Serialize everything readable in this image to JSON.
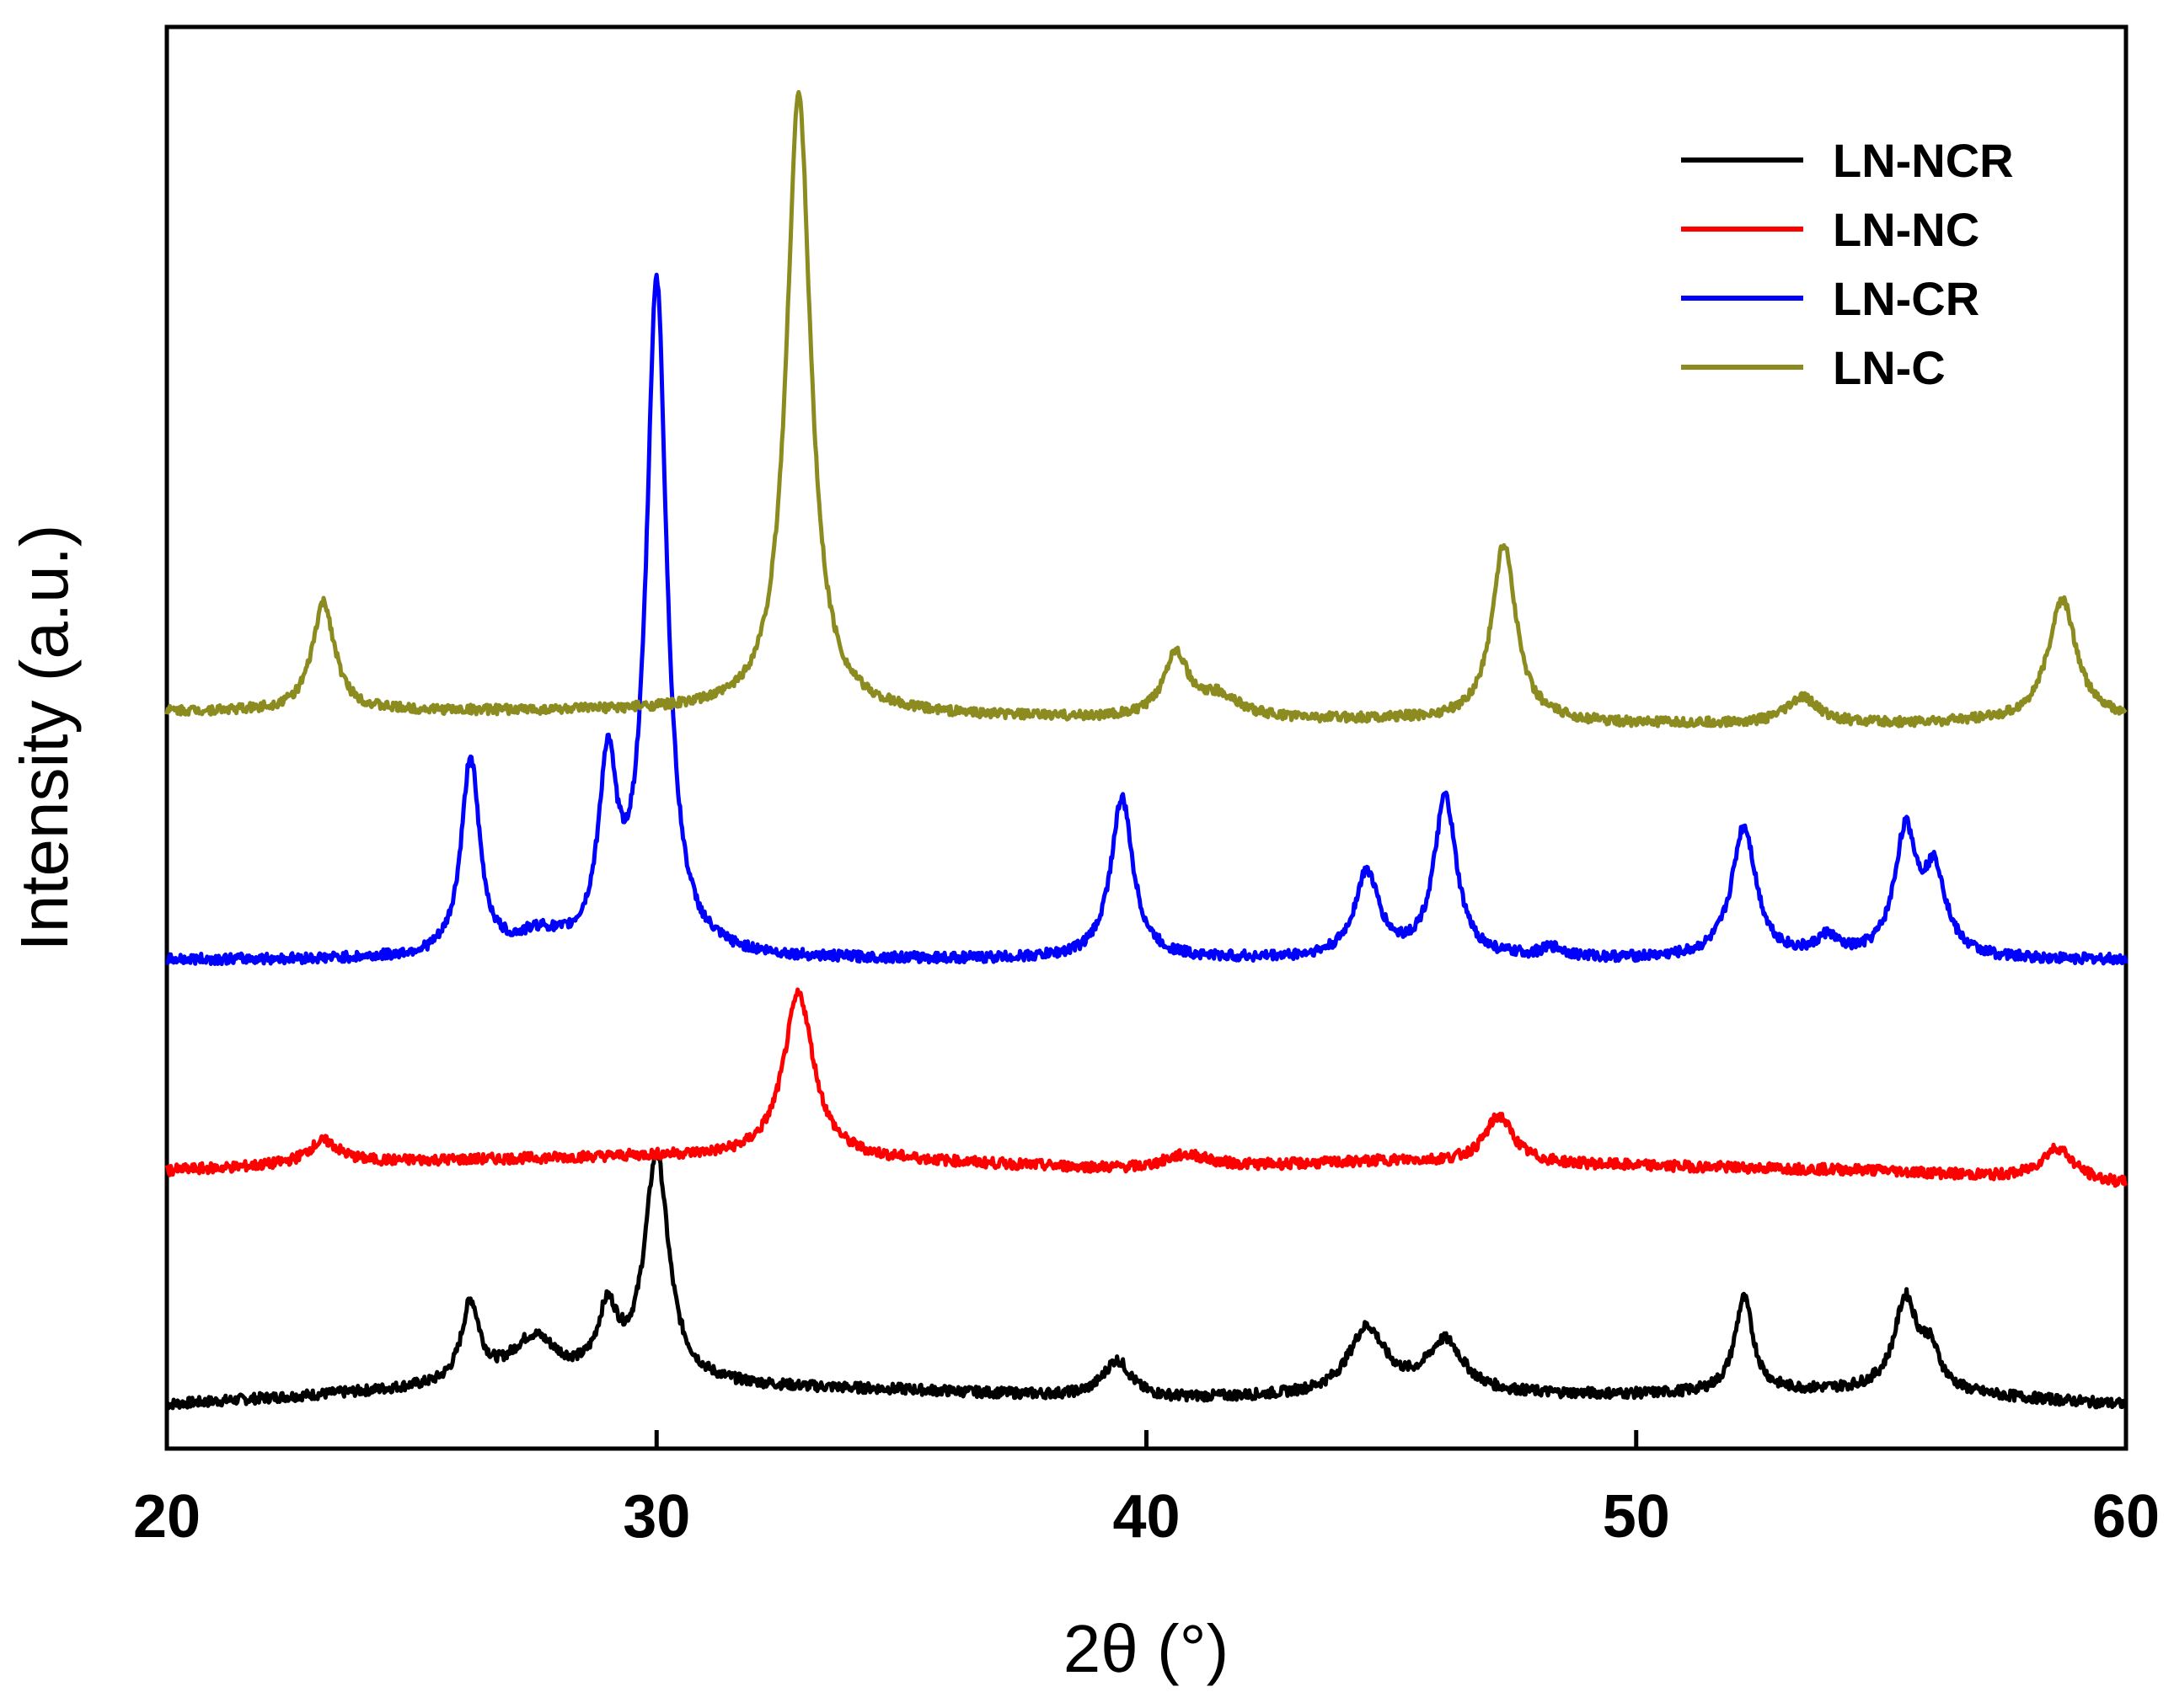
{
  "chart_data": {
    "type": "line",
    "title": "",
    "xlabel": "2θ (°)",
    "ylabel": "Intensity (a.u.)",
    "xlim": [
      20,
      60
    ],
    "xticks": [
      "20",
      "30",
      "40",
      "50",
      "60"
    ],
    "grid": false,
    "y_ticks_shown": false,
    "legend": {
      "position": "top-right",
      "entries": [
        "LN-NCR",
        "LN-NC",
        "LN-CR",
        "LN-C"
      ]
    },
    "series": [
      {
        "name": "LN-NCR",
        "color": "#000000",
        "baseline": [
          0.0,
          0.03,
          0.04,
          0.03,
          0.01,
          0.02,
          0.02,
          0.03,
          0.0
        ],
        "peaks": [
          {
            "x": 26.2,
            "height": 0.17,
            "width": 0.45
          },
          {
            "x": 27.5,
            "height": 0.1,
            "width": 1.2
          },
          {
            "x": 29.0,
            "height": 0.14,
            "width": 0.5
          },
          {
            "x": 30.0,
            "height": 0.48,
            "width": 0.6
          },
          {
            "x": 39.4,
            "height": 0.08,
            "width": 0.7
          },
          {
            "x": 44.5,
            "height": 0.14,
            "width": 0.9
          },
          {
            "x": 46.1,
            "height": 0.11,
            "width": 0.9
          },
          {
            "x": 52.2,
            "height": 0.2,
            "width": 0.45
          },
          {
            "x": 55.5,
            "height": 0.19,
            "width": 0.55
          },
          {
            "x": 56.0,
            "height": 0.08,
            "width": 0.5
          }
        ]
      },
      {
        "name": "LN-NC",
        "color": "#ff0000",
        "baseline": [
          0.0,
          0.02,
          0.03,
          0.02,
          0.0,
          0.02,
          0.01,
          0.0,
          -0.03
        ],
        "peaks": [
          {
            "x": 23.2,
            "height": 0.05,
            "width": 0.8
          },
          {
            "x": 32.9,
            "height": 0.35,
            "width": 0.75
          },
          {
            "x": 40.8,
            "height": 0.03,
            "width": 1.2
          },
          {
            "x": 47.2,
            "height": 0.1,
            "width": 0.7
          },
          {
            "x": 58.6,
            "height": 0.07,
            "width": 0.8
          }
        ]
      },
      {
        "name": "LN-CR",
        "color": "#0000ff",
        "baseline": [
          0.0,
          0.0,
          0.0,
          0.0,
          0.0,
          0.0,
          0.0,
          0.0,
          0.0
        ],
        "peaks": [
          {
            "x": 26.2,
            "height": 0.42,
            "width": 0.45
          },
          {
            "x": 27.6,
            "height": 0.04,
            "width": 1.0
          },
          {
            "x": 29.0,
            "height": 0.38,
            "width": 0.45
          },
          {
            "x": 30.0,
            "height": 1.43,
            "width": 0.5
          },
          {
            "x": 39.5,
            "height": 0.34,
            "width": 0.55
          },
          {
            "x": 44.5,
            "height": 0.18,
            "width": 0.6
          },
          {
            "x": 46.1,
            "height": 0.34,
            "width": 0.55
          },
          {
            "x": 48.3,
            "height": 0.02,
            "width": 0.6
          },
          {
            "x": 52.2,
            "height": 0.28,
            "width": 0.6
          },
          {
            "x": 53.9,
            "height": 0.04,
            "width": 0.5
          },
          {
            "x": 55.5,
            "height": 0.26,
            "width": 0.55
          },
          {
            "x": 56.1,
            "height": 0.17,
            "width": 0.55
          }
        ]
      },
      {
        "name": "LN-C",
        "color": "#8b8b1f",
        "baseline": [
          0.0,
          0.0,
          0.0,
          -0.01,
          -0.02,
          -0.02,
          -0.03,
          -0.03,
          -0.02
        ],
        "peaks": [
          {
            "x": 23.2,
            "height": 0.25,
            "width": 0.55
          },
          {
            "x": 32.9,
            "height": 1.43,
            "width": 0.6
          },
          {
            "x": 40.6,
            "height": 0.15,
            "width": 0.6
          },
          {
            "x": 41.5,
            "height": 0.05,
            "width": 1.0
          },
          {
            "x": 47.3,
            "height": 0.41,
            "width": 0.6
          },
          {
            "x": 53.4,
            "height": 0.06,
            "width": 0.8
          },
          {
            "x": 58.7,
            "height": 0.28,
            "width": 0.7
          }
        ]
      }
    ]
  }
}
